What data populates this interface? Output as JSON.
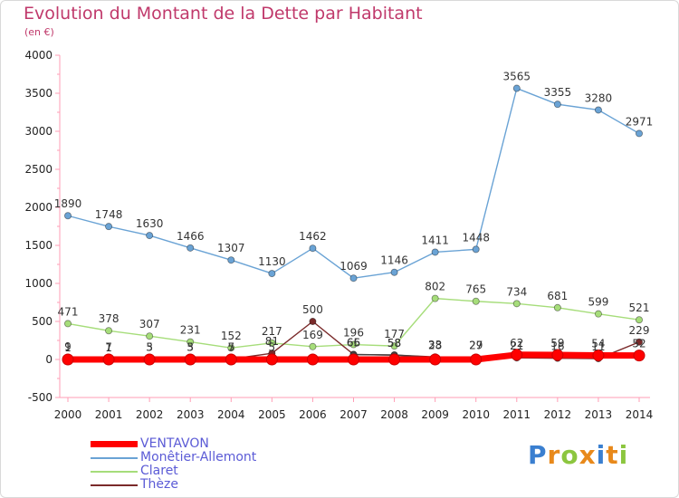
{
  "title": "Evolution du Montant de la Dette par Habitant",
  "unit_label": "(en €)",
  "logo": {
    "text": "Proxiti",
    "letters": [
      {
        "ch": "P",
        "color": "#3a7fd0"
      },
      {
        "ch": "r",
        "color": "#e8891b"
      },
      {
        "ch": "o",
        "color": "#8cc63f"
      },
      {
        "ch": "x",
        "color": "#e8891b"
      },
      {
        "ch": "i",
        "color": "#3a7fd0"
      },
      {
        "ch": "t",
        "color": "#e8891b"
      },
      {
        "ch": "i",
        "color": "#8cc63f"
      }
    ]
  },
  "chart_data": {
    "type": "line",
    "title": "Evolution du Montant de la Dette par Habitant",
    "ylabel": "(en €)",
    "xlabel": "",
    "x": [
      "2000",
      "2001",
      "2002",
      "2003",
      "2004",
      "2005",
      "2006",
      "2007",
      "2008",
      "2009",
      "2010",
      "2011",
      "2012",
      "2013",
      "2014"
    ],
    "ylim": [
      -500,
      4000
    ],
    "yticks": [
      -500,
      0,
      500,
      1000,
      1500,
      2000,
      2500,
      3000,
      3500,
      4000
    ],
    "grid": false,
    "legend_position": "bottom-left",
    "series": [
      {
        "name": "VENTAVON",
        "color": "#ff0000",
        "values": [
          0,
          0,
          0,
          0,
          0,
          0,
          0,
          0,
          0,
          0,
          0,
          62,
          59,
          54,
          52
        ],
        "labels": [
          "",
          "",
          "",
          "",
          "",
          "",
          "",
          "",
          "",
          "",
          "",
          "62",
          "59",
          "54",
          "52"
        ]
      },
      {
        "name": "Monêtier-Allemont",
        "color": "#6aa3d5",
        "values": [
          1890,
          1748,
          1630,
          1466,
          1307,
          1130,
          1462,
          1069,
          1146,
          1411,
          1448,
          3565,
          3355,
          3280,
          2971
        ],
        "labels": [
          "1890",
          "1748",
          "1630",
          "1466",
          "1307",
          "1130",
          "1462",
          "1069",
          "1146",
          "1411",
          "1448",
          "3565",
          "3355",
          "3280",
          "2971"
        ]
      },
      {
        "name": "Claret",
        "color": "#a6dd7a",
        "values": [
          471,
          378,
          307,
          231,
          152,
          217,
          169,
          196,
          177,
          802,
          765,
          734,
          681,
          599,
          521
        ],
        "labels": [
          "471",
          "378",
          "307",
          "231",
          "152",
          "217",
          "169",
          "196",
          "177",
          "802",
          "765",
          "734",
          "681",
          "599",
          "521"
        ]
      },
      {
        "name": "Thèze",
        "color": "#7a2a2a",
        "values": [
          9,
          7,
          3,
          3,
          7,
          81,
          500,
          66,
          58,
          33,
          29,
          21,
          16,
          11,
          229
        ],
        "labels": [
          "9",
          "7",
          "3",
          "3",
          "7",
          "81",
          "500",
          "66",
          "58",
          "33",
          "29",
          "21",
          "16",
          "11",
          "229"
        ]
      },
      {
        "name": "",
        "color": "#444444",
        "values": [
          1,
          1,
          5,
          5,
          5,
          5,
          null,
          65,
          58,
          28,
          27,
          null,
          null,
          null,
          null
        ],
        "labels": [
          "1",
          "1",
          "5",
          "5",
          "5",
          "5",
          "",
          "65",
          "58",
          "28",
          "27",
          "",
          "",
          "",
          ""
        ]
      }
    ]
  }
}
